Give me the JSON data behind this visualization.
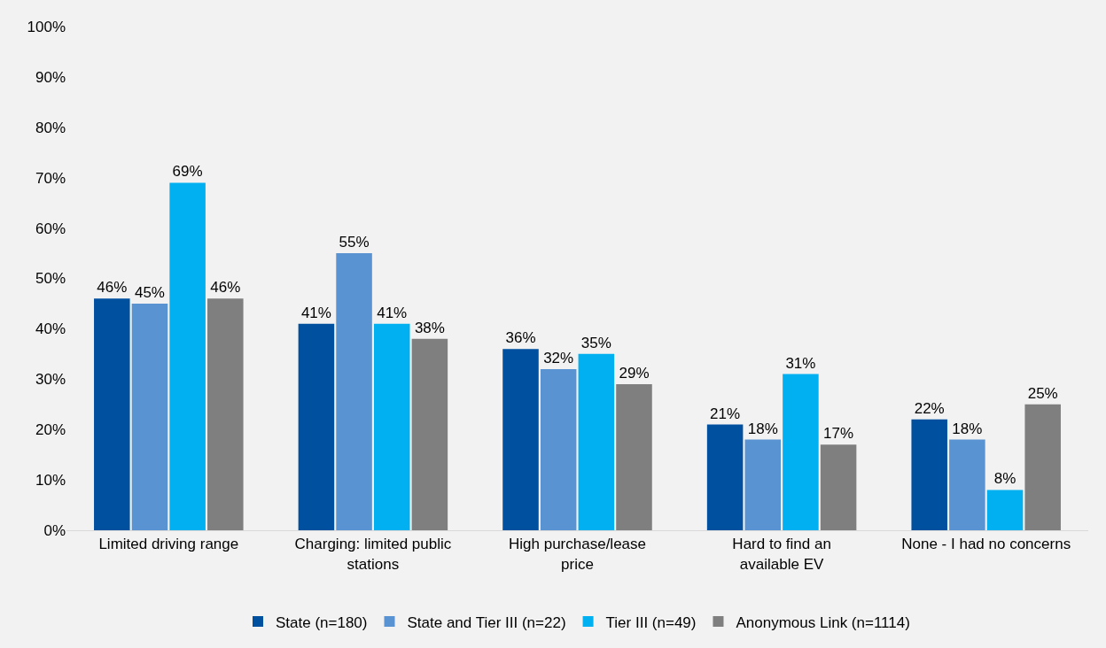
{
  "chart_data": {
    "type": "bar",
    "categories": [
      "Limited driving range",
      "Charging: limited public stations",
      "High purchase/lease price",
      "Hard to find an available EV",
      "None - I had no concerns"
    ],
    "series": [
      {
        "name": "State (n=180)",
        "color": "#0050a0",
        "values": [
          46,
          41,
          36,
          21,
          22
        ],
        "value_labels": [
          "46%",
          "41%",
          "36%",
          "21%",
          "22%"
        ]
      },
      {
        "name": "State and Tier III (n=22)",
        "color": "#5a93d2",
        "values": [
          45,
          55,
          32,
          18,
          18
        ],
        "value_labels": [
          "45%",
          "55%",
          "32%",
          "18%",
          "18%"
        ]
      },
      {
        "name": "Tier III (n=49)",
        "color": "#00b0f0",
        "values": [
          69,
          41,
          35,
          31,
          8
        ],
        "value_labels": [
          "69%",
          "41%",
          "35%",
          "31%",
          "8%"
        ]
      },
      {
        "name": "Anonymous Link (n=1114)",
        "color": "#7f7f7f",
        "values": [
          46,
          38,
          29,
          17,
          25
        ],
        "value_labels": [
          "46%",
          "38%",
          "29%",
          "17%",
          "25%"
        ]
      }
    ],
    "ylim": [
      0,
      100
    ],
    "yticks": [
      {
        "value": 0,
        "label": "0%"
      },
      {
        "value": 10,
        "label": "10%"
      },
      {
        "value": 20,
        "label": "20%"
      },
      {
        "value": 30,
        "label": "30%"
      },
      {
        "value": 40,
        "label": "40%"
      },
      {
        "value": 50,
        "label": "50%"
      },
      {
        "value": 60,
        "label": "60%"
      },
      {
        "value": 70,
        "label": "70%"
      },
      {
        "value": 80,
        "label": "80%"
      },
      {
        "value": 90,
        "label": "90%"
      },
      {
        "value": 100,
        "label": "100%"
      }
    ],
    "grid": false,
    "legend": "bottom"
  }
}
